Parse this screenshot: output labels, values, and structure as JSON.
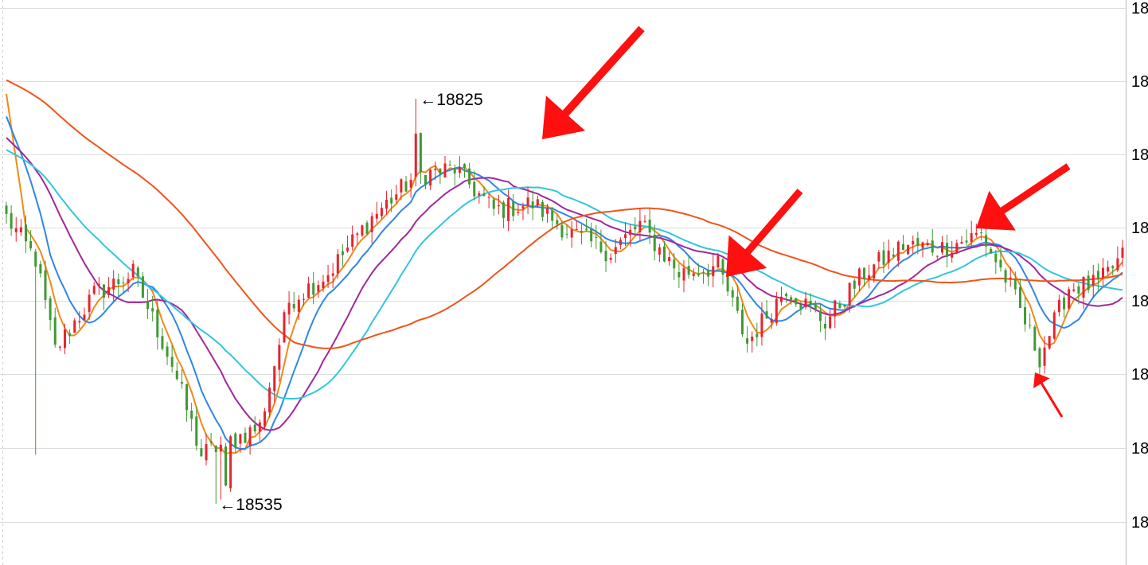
{
  "colors": {
    "up": "#e8232e",
    "down": "#3e9a34",
    "ma_orange": "#f08a1a",
    "ma_blue": "#2f86e6",
    "ma_purple": "#a1289b",
    "ma_cyan": "#33c5dd",
    "ma_red": "#f0541a",
    "arrow": "#ff1010",
    "grid": "#dddddd"
  },
  "chart_data": {
    "type": "candlestick",
    "title": "",
    "xlabel": "",
    "ylabel": "",
    "ylim": [
      18515,
      18890
    ],
    "yticks": [
      "18",
      "18",
      "18",
      "18",
      "18",
      "18",
      "18",
      "18"
    ],
    "annotations": [
      {
        "text": "←18825",
        "price": 18825,
        "kind": "high"
      },
      {
        "text": "←18535",
        "price": 18535,
        "kind": "low"
      }
    ],
    "grid": true,
    "candle_count": 230,
    "anchors": [
      [
        0,
        18740
      ],
      [
        6,
        18710
      ],
      [
        10,
        18645
      ],
      [
        18,
        18685
      ],
      [
        26,
        18700
      ],
      [
        34,
        18635
      ],
      [
        40,
        18570
      ],
      [
        46,
        18580
      ],
      [
        52,
        18590
      ],
      [
        58,
        18680
      ],
      [
        66,
        18700
      ],
      [
        75,
        18740
      ],
      [
        84,
        18770
      ],
      [
        92,
        18775
      ],
      [
        100,
        18745
      ],
      [
        108,
        18750
      ],
      [
        116,
        18728
      ],
      [
        124,
        18715
      ],
      [
        130,
        18735
      ],
      [
        138,
        18700
      ],
      [
        146,
        18705
      ],
      [
        152,
        18650
      ],
      [
        160,
        18690
      ],
      [
        168,
        18665
      ],
      [
        176,
        18700
      ],
      [
        184,
        18720
      ],
      [
        192,
        18718
      ],
      [
        200,
        18728
      ],
      [
        206,
        18690
      ],
      [
        212,
        18640
      ],
      [
        218,
        18690
      ],
      [
        224,
        18692
      ],
      [
        229,
        18712
      ]
    ],
    "moving_averages": [
      {
        "period": 5,
        "color": "#f08a1a"
      },
      {
        "period": 10,
        "color": "#2f86e6"
      },
      {
        "period": 20,
        "color": "#a1289b"
      },
      {
        "period": 30,
        "color": "#33c5dd"
      },
      {
        "period": 60,
        "color": "#f0541a"
      }
    ]
  }
}
